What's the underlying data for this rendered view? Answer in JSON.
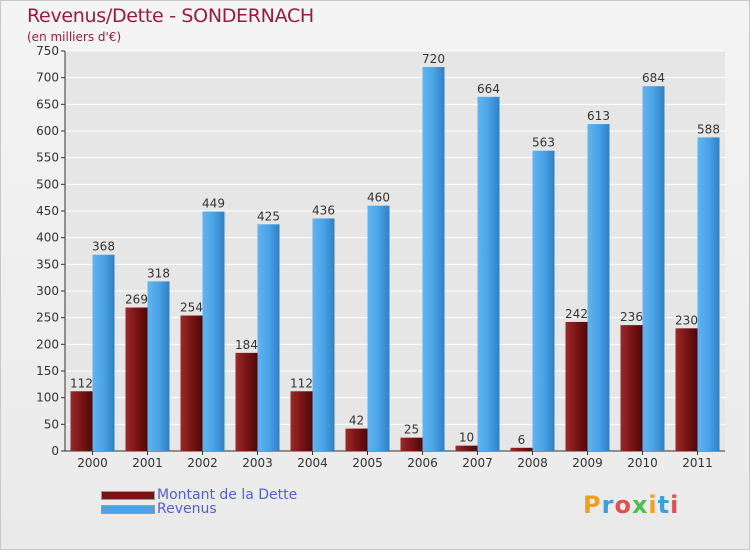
{
  "title": "Revenus/Dette - SONDERNACH",
  "subtitle": "(en milliers d'€)",
  "legend": [
    {
      "label": "Montant de la Dette",
      "color": "#7a1414"
    },
    {
      "label": "Revenus",
      "color": "#4aa3e6"
    }
  ],
  "logo": {
    "text": "Proxiti"
  },
  "colors": {
    "debt": "#7a1414",
    "revenue": "#4aa3e6",
    "grid": "#ffffff"
  },
  "chart_data": {
    "type": "bar",
    "title": "Revenus/Dette - SONDERNACH",
    "ylabel": "(en milliers d'€)",
    "categories": [
      "2000",
      "2001",
      "2002",
      "2003",
      "2004",
      "2005",
      "2006",
      "2007",
      "2008",
      "2009",
      "2010",
      "2011"
    ],
    "series": [
      {
        "name": "Montant de la Dette",
        "values": [
          112,
          269,
          254,
          184,
          112,
          42,
          25,
          10,
          6,
          242,
          236,
          230
        ]
      },
      {
        "name": "Revenus",
        "values": [
          368,
          318,
          449,
          425,
          436,
          460,
          720,
          664,
          563,
          613,
          684,
          588
        ]
      }
    ],
    "ylim": [
      0,
      750
    ],
    "yticks": [
      0,
      50,
      100,
      150,
      200,
      250,
      300,
      350,
      400,
      450,
      500,
      550,
      600,
      650,
      700,
      750
    ],
    "grid": true,
    "legend_position": "bottom-left"
  }
}
